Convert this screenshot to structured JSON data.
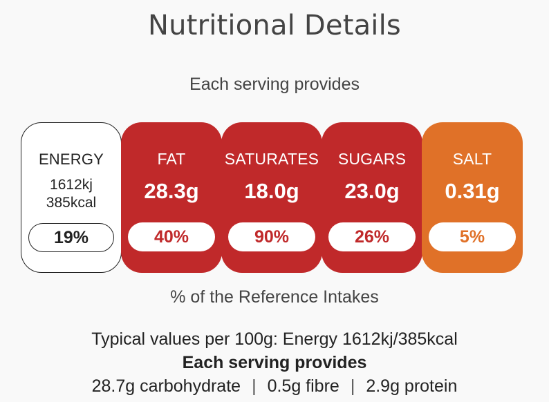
{
  "title": "Nutritional Details",
  "subtitle": "Each serving provides",
  "energy": {
    "label": "ENERGY",
    "kj": "1612kj",
    "kcal": "385kcal",
    "percent": "19%"
  },
  "nutrients": [
    {
      "label": "FAT",
      "amount": "28.3g",
      "percent": "40%",
      "level": "high",
      "color": "#c0292a"
    },
    {
      "label": "SATURATES",
      "amount": "18.0g",
      "percent": "90%",
      "level": "high",
      "color": "#c0292a"
    },
    {
      "label": "SUGARS",
      "amount": "23.0g",
      "percent": "26%",
      "level": "high",
      "color": "#c0292a"
    },
    {
      "label": "SALT",
      "amount": "0.31g",
      "percent": "5%",
      "level": "medium",
      "color": "#e07128"
    }
  ],
  "reference_note": "% of the Reference Intakes",
  "typical_values": "Typical values per 100g: Energy 1612kj/385kcal",
  "each_serving_heading": "Each serving provides",
  "serving_items": [
    "28.7g carbohydrate",
    "0.5g fibre",
    "2.9g protein"
  ],
  "separator": "|"
}
